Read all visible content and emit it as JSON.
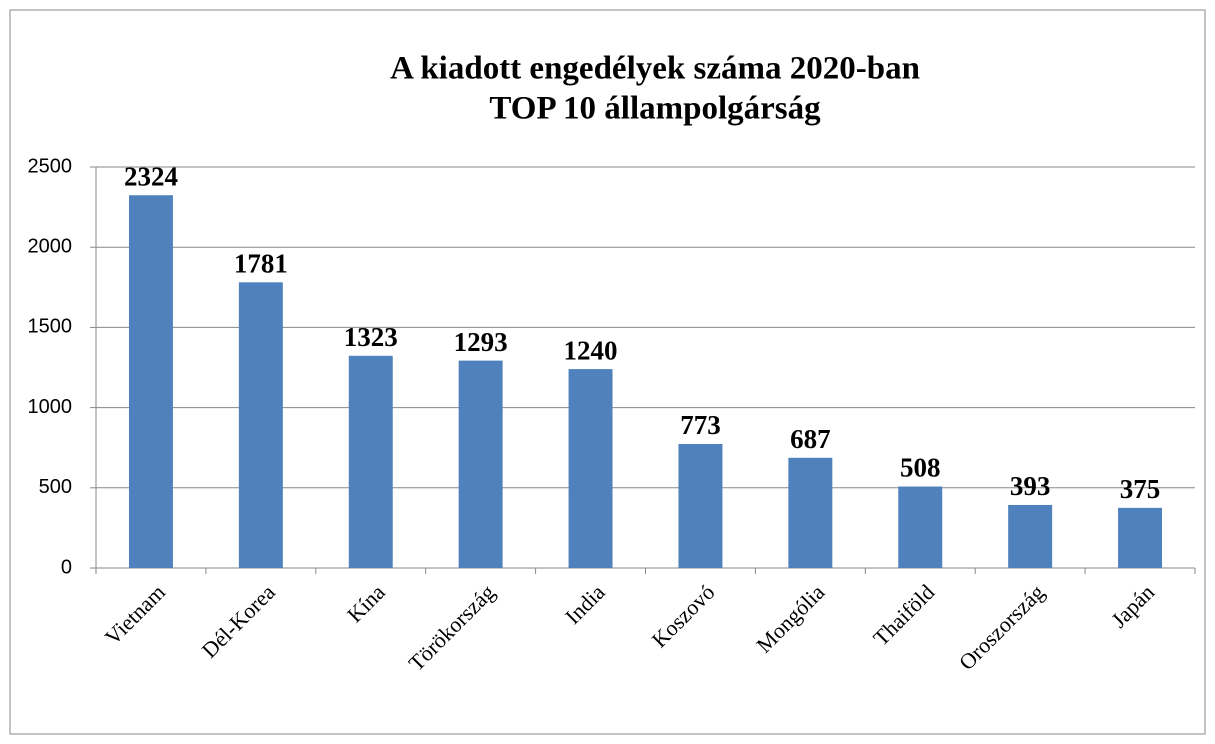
{
  "chart_data": {
    "type": "bar",
    "title": [
      "A kiadott engedélyek száma 2020-ban",
      "TOP 10 állampolgárság"
    ],
    "categories": [
      "Vietnam",
      "Dél-Korea",
      "Kína",
      "Törökország",
      "India",
      "Koszovó",
      "Mongólia",
      "Thaiföld",
      "Oroszország",
      "Japán"
    ],
    "values": [
      2324,
      1781,
      1323,
      1293,
      1240,
      773,
      687,
      508,
      393,
      375
    ],
    "color": "#4f81bd",
    "ylim": [
      0,
      2500
    ],
    "yticks": [
      0,
      500,
      1000,
      1500,
      2000,
      2500
    ],
    "grid": true
  }
}
